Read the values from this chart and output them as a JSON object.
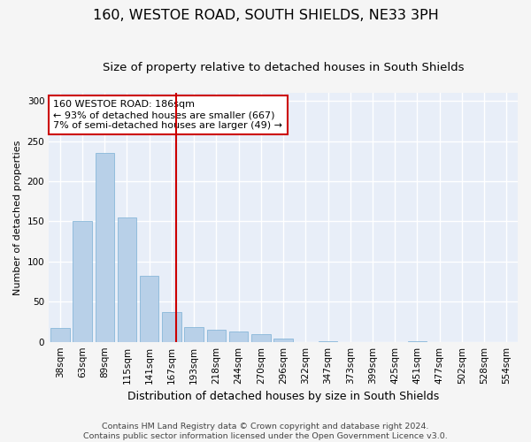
{
  "title": "160, WESTOE ROAD, SOUTH SHIELDS, NE33 3PH",
  "subtitle": "Size of property relative to detached houses in South Shields",
  "xlabel": "Distribution of detached houses by size in South Shields",
  "ylabel": "Number of detached properties",
  "bar_labels": [
    "38sqm",
    "63sqm",
    "89sqm",
    "115sqm",
    "141sqm",
    "167sqm",
    "193sqm",
    "218sqm",
    "244sqm",
    "270sqm",
    "296sqm",
    "322sqm",
    "347sqm",
    "373sqm",
    "399sqm",
    "425sqm",
    "451sqm",
    "477sqm",
    "502sqm",
    "528sqm",
    "554sqm"
  ],
  "bar_values": [
    17,
    150,
    235,
    155,
    82,
    37,
    18,
    15,
    13,
    10,
    4,
    0,
    1,
    0,
    0,
    0,
    1,
    0,
    0,
    0,
    0
  ],
  "bar_color": "#b8d0e8",
  "bar_edge_color": "#7aafd4",
  "bg_color": "#e8eef8",
  "grid_color": "#ffffff",
  "vline_color": "#cc0000",
  "annotation_text": "160 WESTOE ROAD: 186sqm\n← 93% of detached houses are smaller (667)\n7% of semi-detached houses are larger (49) →",
  "annotation_box_color": "#cc0000",
  "footer_line1": "Contains HM Land Registry data © Crown copyright and database right 2024.",
  "footer_line2": "Contains public sector information licensed under the Open Government Licence v3.0.",
  "ylim": [
    0,
    310
  ],
  "yticks": [
    0,
    50,
    100,
    150,
    200,
    250,
    300
  ],
  "title_fontsize": 11.5,
  "subtitle_fontsize": 9.5,
  "xlabel_fontsize": 9,
  "ylabel_fontsize": 8,
  "tick_fontsize": 7.5,
  "annotation_fontsize": 8,
  "footer_fontsize": 6.8,
  "fig_facecolor": "#f5f5f5"
}
